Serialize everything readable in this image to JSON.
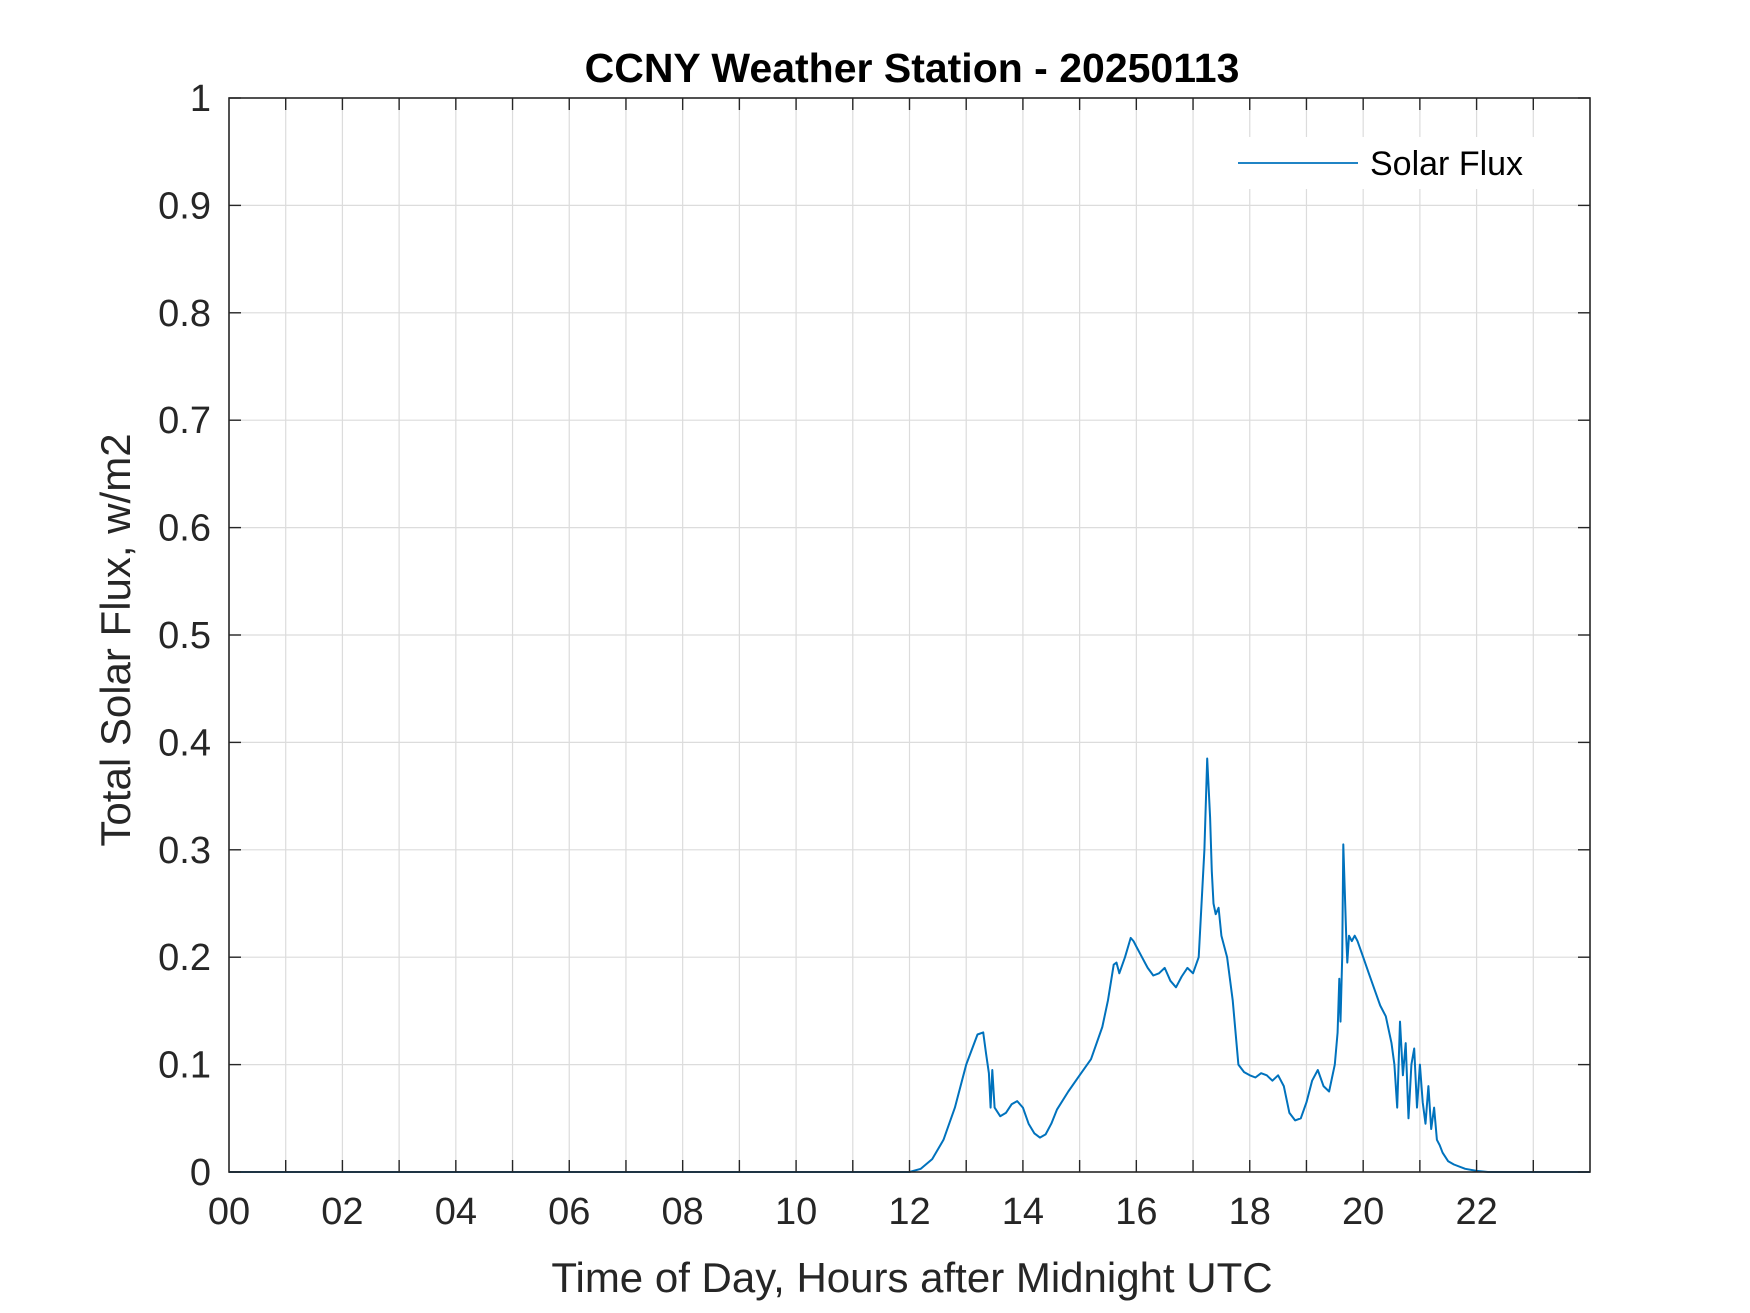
{
  "chart_data": {
    "type": "line",
    "title": "CCNY Weather Station - 20250113",
    "xlabel": "Time of Day, Hours after Midnight UTC",
    "ylabel": "Total Solar Flux, w/m2",
    "xlim": [
      0,
      24
    ],
    "ylim": [
      0,
      1
    ],
    "xticks": [
      0,
      2,
      4,
      6,
      8,
      10,
      12,
      14,
      16,
      18,
      20,
      22
    ],
    "xtick_labels": [
      "00",
      "02",
      "04",
      "06",
      "08",
      "10",
      "12",
      "14",
      "16",
      "18",
      "20",
      "22"
    ],
    "xgrid_step": 1,
    "yticks": [
      0,
      0.1,
      0.2,
      0.3,
      0.4,
      0.5,
      0.6,
      0.7,
      0.8,
      0.9,
      1
    ],
    "ytick_labels": [
      "0",
      "0.1",
      "0.2",
      "0.3",
      "0.4",
      "0.5",
      "0.6",
      "0.7",
      "0.8",
      "0.9",
      "1"
    ],
    "grid": true,
    "legend": {
      "position": "top-right",
      "entries": [
        "Solar Flux"
      ]
    },
    "series": [
      {
        "name": "Solar Flux",
        "color": "#0072BD",
        "x": [
          0,
          12.0,
          12.2,
          12.4,
          12.6,
          12.8,
          13.0,
          13.2,
          13.3,
          13.35,
          13.4,
          13.43,
          13.46,
          13.5,
          13.6,
          13.7,
          13.8,
          13.9,
          14.0,
          14.1,
          14.2,
          14.3,
          14.4,
          14.5,
          14.6,
          14.8,
          15.0,
          15.2,
          15.4,
          15.5,
          15.6,
          15.65,
          15.7,
          15.8,
          15.9,
          15.95,
          16.0,
          16.1,
          16.2,
          16.3,
          16.4,
          16.5,
          16.6,
          16.7,
          16.8,
          16.9,
          17.0,
          17.1,
          17.2,
          17.25,
          17.3,
          17.33,
          17.36,
          17.4,
          17.45,
          17.5,
          17.6,
          17.7,
          17.8,
          17.9,
          18.0,
          18.1,
          18.2,
          18.3,
          18.4,
          18.5,
          18.6,
          18.7,
          18.8,
          18.9,
          19.0,
          19.1,
          19.2,
          19.3,
          19.4,
          19.5,
          19.55,
          19.58,
          19.6,
          19.63,
          19.65,
          19.7,
          19.72,
          19.75,
          19.8,
          19.85,
          19.9,
          20.0,
          20.1,
          20.2,
          20.3,
          20.4,
          20.5,
          20.55,
          20.6,
          20.65,
          20.7,
          20.75,
          20.8,
          20.85,
          20.9,
          20.95,
          21.0,
          21.05,
          21.1,
          21.15,
          21.2,
          21.25,
          21.3,
          21.35,
          21.4,
          21.5,
          21.6,
          21.8,
          22.0,
          22.2,
          24.0
        ],
        "y": [
          0,
          0,
          0.003,
          0.012,
          0.03,
          0.06,
          0.1,
          0.128,
          0.13,
          0.11,
          0.092,
          0.06,
          0.095,
          0.06,
          0.052,
          0.055,
          0.063,
          0.066,
          0.06,
          0.045,
          0.036,
          0.032,
          0.035,
          0.045,
          0.058,
          0.075,
          0.09,
          0.105,
          0.135,
          0.16,
          0.193,
          0.195,
          0.185,
          0.2,
          0.218,
          0.215,
          0.21,
          0.2,
          0.19,
          0.183,
          0.185,
          0.19,
          0.178,
          0.172,
          0.182,
          0.19,
          0.185,
          0.2,
          0.3,
          0.385,
          0.33,
          0.28,
          0.25,
          0.24,
          0.246,
          0.22,
          0.2,
          0.16,
          0.1,
          0.093,
          0.09,
          0.088,
          0.092,
          0.09,
          0.085,
          0.09,
          0.08,
          0.055,
          0.048,
          0.05,
          0.065,
          0.085,
          0.095,
          0.08,
          0.075,
          0.1,
          0.13,
          0.18,
          0.14,
          0.2,
          0.305,
          0.22,
          0.195,
          0.22,
          0.215,
          0.22,
          0.215,
          0.2,
          0.185,
          0.17,
          0.155,
          0.145,
          0.12,
          0.1,
          0.06,
          0.14,
          0.09,
          0.12,
          0.05,
          0.1,
          0.115,
          0.06,
          0.1,
          0.065,
          0.045,
          0.08,
          0.04,
          0.06,
          0.03,
          0.025,
          0.018,
          0.01,
          0.007,
          0.003,
          0.001,
          0,
          0
        ]
      }
    ]
  }
}
